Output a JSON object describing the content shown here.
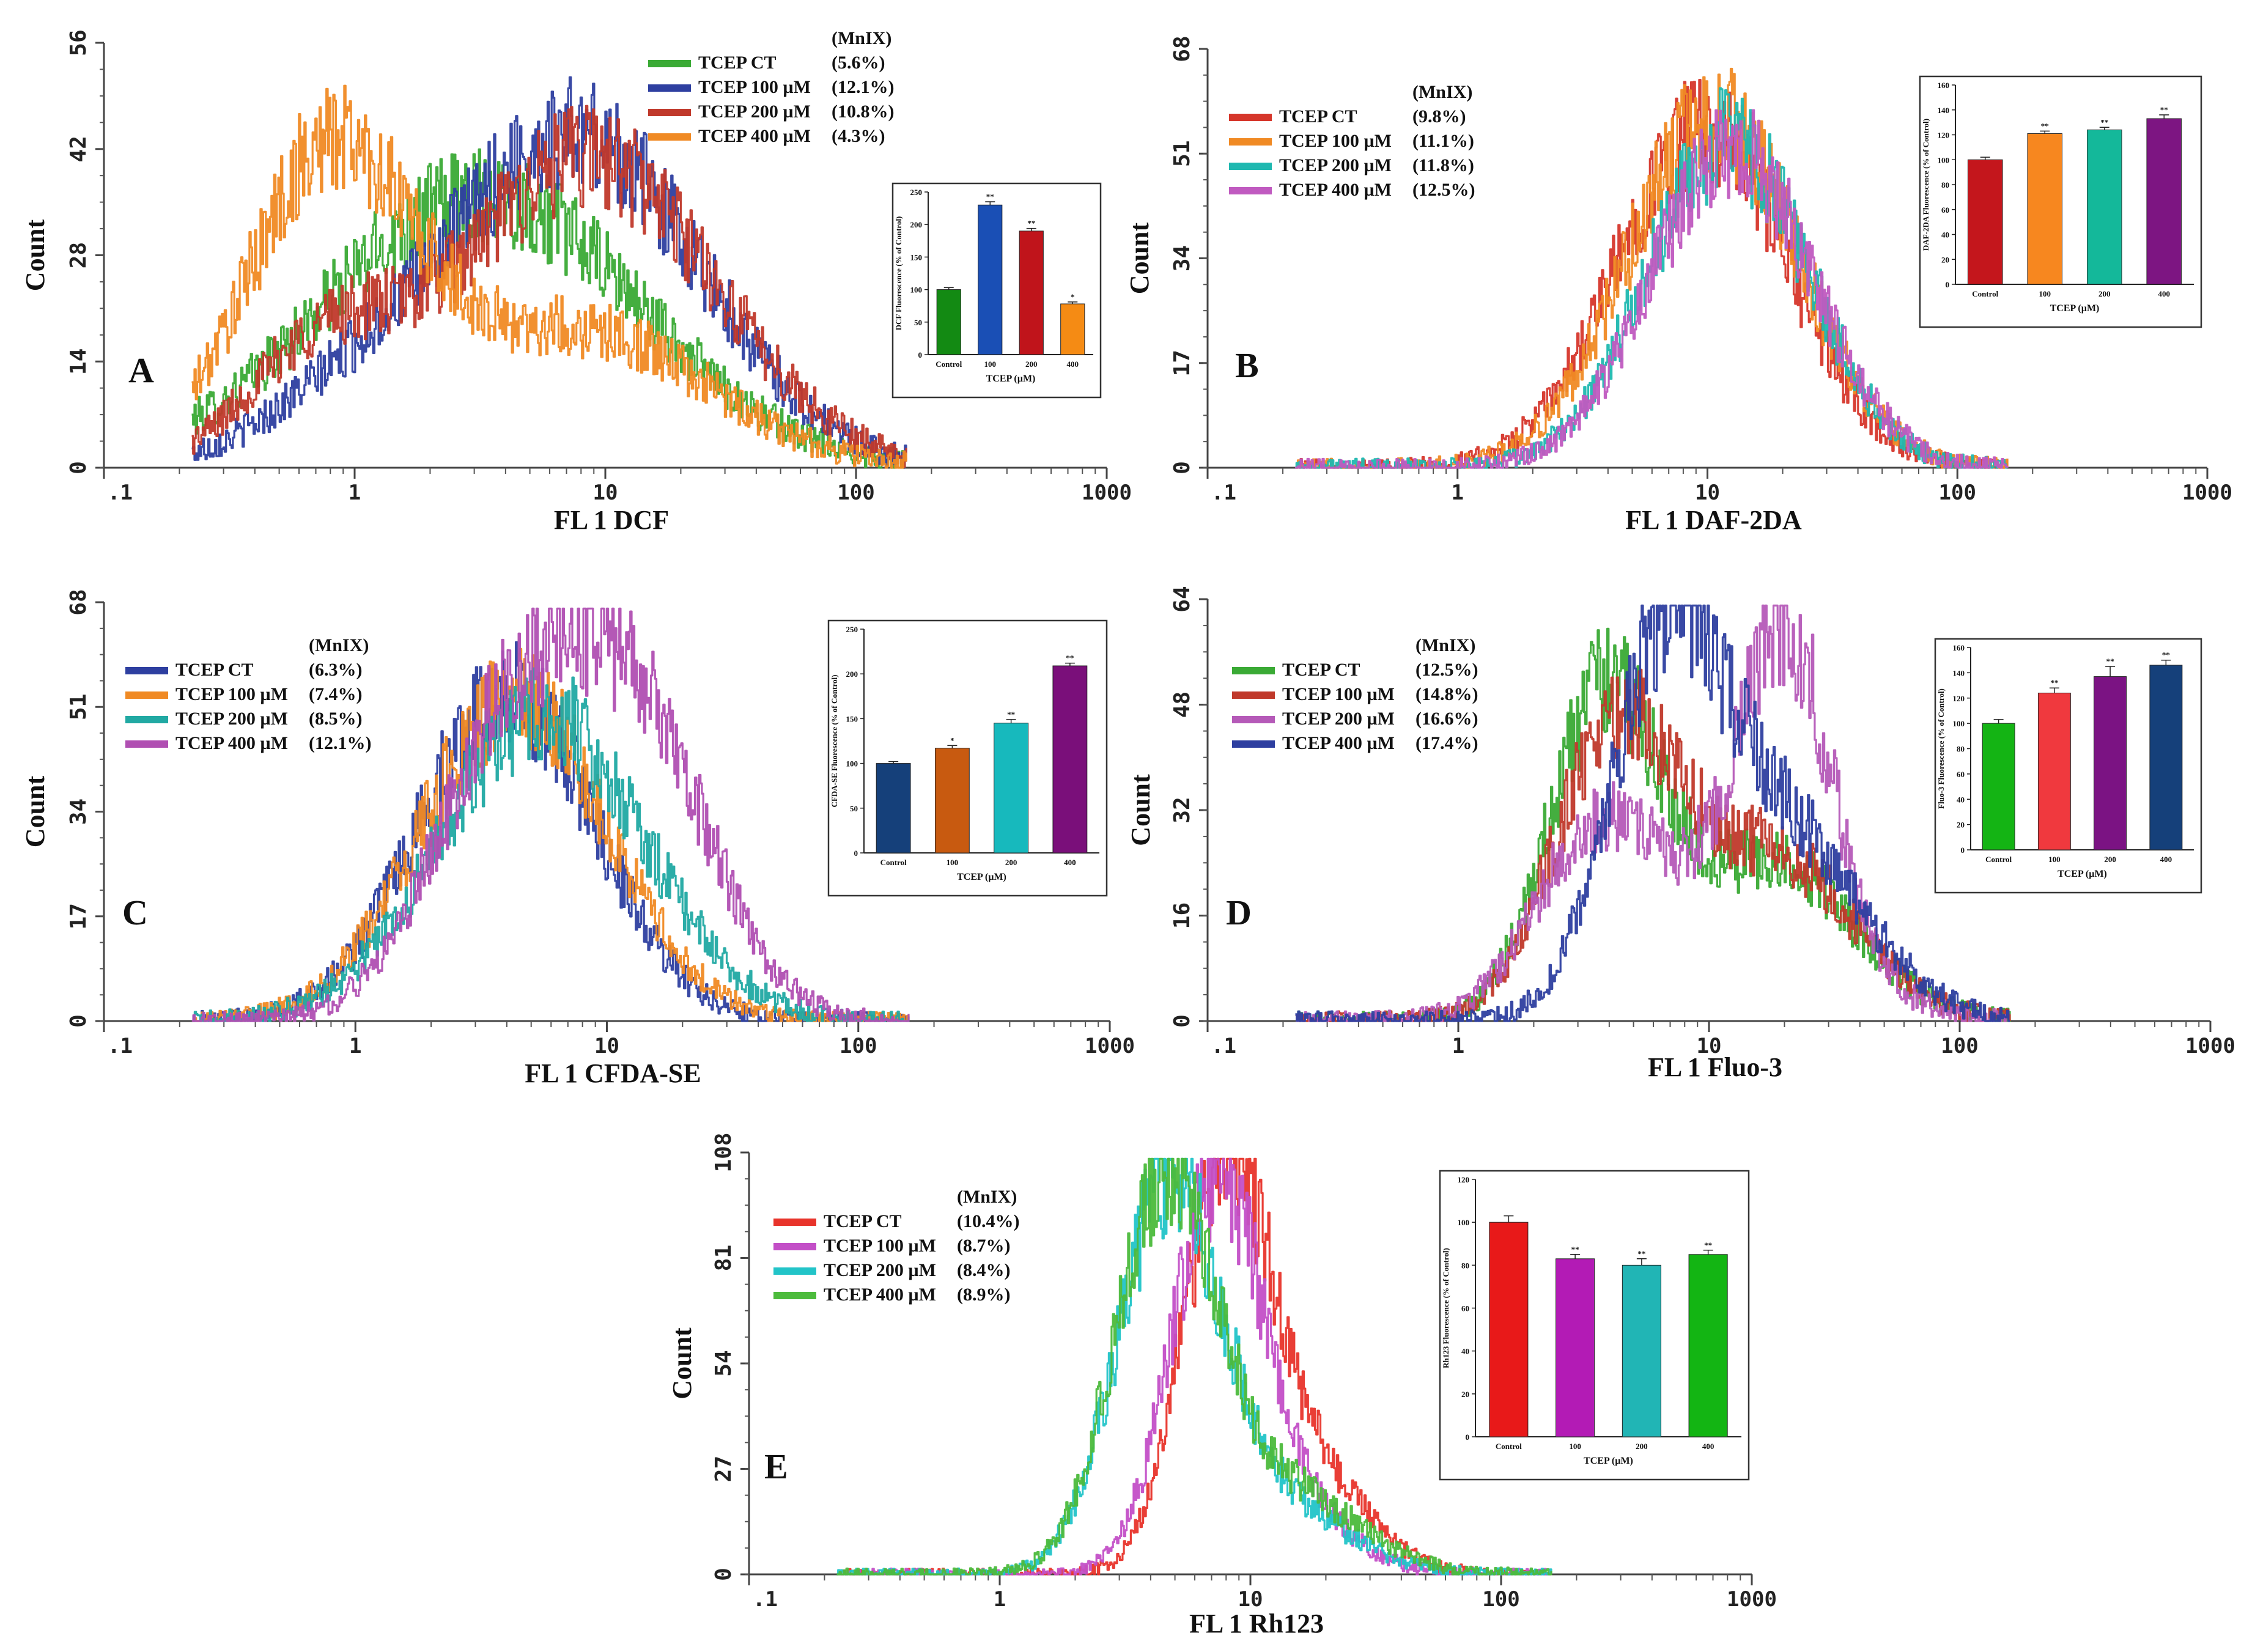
{
  "chart_data": [
    {
      "type": "line",
      "panel": "A",
      "title": "",
      "xlabel": "FL 1 DCF",
      "ylabel": "Count",
      "xscale": "log",
      "xlim": [
        0.1,
        1000
      ],
      "ylim": [
        0,
        56
      ],
      "x_tick_labels": [
        ".1",
        "1",
        "10",
        "100",
        "1000"
      ],
      "y_tick_labels": [
        "0",
        "14",
        "28",
        "42",
        "56"
      ],
      "legend_header": "(MnIX)",
      "series": [
        {
          "name": "TCEP CT",
          "mnix": "(5.6%)",
          "color": "#3aaa35",
          "peaks": [
            {
              "x": 3.2,
              "y": 36,
              "w": 0.62
            }
          ]
        },
        {
          "name": "TCEP 100 µM",
          "mnix": "(12.1%)",
          "color": "#2e3fa0",
          "peaks": [
            {
              "x": 7.5,
              "y": 44,
              "w": 0.5
            },
            {
              "x": 0.9,
              "y": 7,
              "w": 0.35
            }
          ]
        },
        {
          "name": "TCEP 200 µM",
          "mnix": "(10.8%)",
          "color": "#c0392b",
          "peaks": [
            {
              "x": 8.5,
              "y": 41,
              "w": 0.5
            },
            {
              "x": 0.75,
              "y": 15,
              "w": 0.3
            }
          ]
        },
        {
          "name": "TCEP 400 µM",
          "mnix": "(4.3%)",
          "color": "#f08a24",
          "peaks": [
            {
              "x": 0.8,
              "y": 41,
              "w": 0.33
            },
            {
              "x": 8,
              "y": 18,
              "w": 0.5
            }
          ]
        }
      ],
      "inset": {
        "ylabel": "DCF Fluorescence (% of Control)",
        "xlabel": "TCEP (µM)",
        "categories": [
          "Control",
          "100",
          "200",
          "400"
        ],
        "values": [
          100,
          230,
          190,
          78
        ],
        "errors": [
          3,
          5,
          4,
          3
        ],
        "significance": [
          "",
          "**",
          "**",
          "*"
        ],
        "ylim": [
          0,
          250
        ],
        "y_ticks": [
          "0",
          "50",
          "100",
          "150",
          "200",
          "250"
        ],
        "colors": [
          "#138a13",
          "#1a4fb5",
          "#c0141b",
          "#f58b14"
        ]
      }
    },
    {
      "type": "line",
      "panel": "B",
      "xlabel": "FL 1 DAF-2DA",
      "ylabel": "Count",
      "xscale": "log",
      "xlim": [
        0.1,
        1000
      ],
      "ylim": [
        0,
        68
      ],
      "x_tick_labels": [
        ".1",
        "1",
        "10",
        "100",
        "1000"
      ],
      "y_tick_labels": [
        "0",
        "17",
        "34",
        "51",
        "68"
      ],
      "legend_header": "(MnIX)",
      "series": [
        {
          "name": "TCEP CT",
          "mnix": "(9.8%)",
          "color": "#d6362b",
          "peaks": [
            {
              "x": 9.5,
              "y": 55,
              "w": 0.34
            }
          ]
        },
        {
          "name": "TCEP 100 µM",
          "mnix": "(11.1%)",
          "color": "#f08a24",
          "peaks": [
            {
              "x": 10.5,
              "y": 57,
              "w": 0.34
            }
          ]
        },
        {
          "name": "TCEP 200 µM",
          "mnix": "(11.8%)",
          "color": "#1fb8b0",
          "peaks": [
            {
              "x": 12,
              "y": 53,
              "w": 0.32
            }
          ]
        },
        {
          "name": "TCEP 400 µM",
          "mnix": "(12.5%)",
          "color": "#c05ac0",
          "peaks": [
            {
              "x": 12.5,
              "y": 52,
              "w": 0.32
            }
          ]
        }
      ],
      "inset": {
        "ylabel": "DAF-2DA Fluorescence (% of Control)",
        "xlabel": "TCEP (µM)",
        "categories": [
          "Control",
          "100",
          "200",
          "400"
        ],
        "values": [
          100,
          121,
          124,
          133
        ],
        "errors": [
          2,
          2,
          2,
          3
        ],
        "significance": [
          "",
          "**",
          "**",
          "**"
        ],
        "ylim": [
          0,
          160
        ],
        "y_ticks": [
          "0",
          "20",
          "40",
          "60",
          "80",
          "100",
          "120",
          "140",
          "160"
        ],
        "colors": [
          "#c4161c",
          "#f7871f",
          "#14b89a",
          "#7d1582"
        ]
      }
    },
    {
      "type": "line",
      "panel": "C",
      "xlabel": "FL 1 CFDA-SE",
      "ylabel": "Count",
      "xscale": "log",
      "xlim": [
        0.1,
        1000
      ],
      "ylim": [
        0,
        68
      ],
      "x_tick_labels": [
        ".1",
        "1",
        "10",
        "100",
        "1000"
      ],
      "y_tick_labels": [
        "0",
        "17",
        "34",
        "51",
        "68"
      ],
      "legend_header": "(MnIX)",
      "series": [
        {
          "name": "TCEP CT",
          "mnix": "(6.3%)",
          "color": "#2e3fa0",
          "peaks": [
            {
              "x": 4,
              "y": 53,
              "w": 0.35
            }
          ]
        },
        {
          "name": "TCEP 100 µM",
          "mnix": "(7.4%)",
          "color": "#f08a24",
          "peaks": [
            {
              "x": 4.3,
              "y": 52,
              "w": 0.37
            }
          ]
        },
        {
          "name": "TCEP 200 µM",
          "mnix": "(8.5%)",
          "color": "#21a9a3",
          "peaks": [
            {
              "x": 5.5,
              "y": 50,
              "w": 0.4
            }
          ]
        },
        {
          "name": "TCEP 400 µM",
          "mnix": "(12.1%)",
          "color": "#b04fb2",
          "peaks": [
            {
              "x": 4,
              "y": 44,
              "w": 0.3
            },
            {
              "x": 13,
              "y": 46,
              "w": 0.3
            }
          ]
        }
      ],
      "inset": {
        "ylabel": "CFDA-SE Fluorescence (% of Control)",
        "xlabel": "TCEP (µM)",
        "categories": [
          "Control",
          "100",
          "200",
          "400"
        ],
        "values": [
          100,
          117,
          145,
          209
        ],
        "errors": [
          2,
          3,
          4,
          3
        ],
        "significance": [
          "",
          "*",
          "**",
          "**"
        ],
        "ylim": [
          0,
          250
        ],
        "y_ticks": [
          "0",
          "50",
          "100",
          "150",
          "200",
          "250"
        ],
        "colors": [
          "#15407a",
          "#c85a10",
          "#17b9bd",
          "#7a0f7a"
        ]
      }
    },
    {
      "type": "line",
      "panel": "D",
      "xlabel": "FL 1 Fluo-3",
      "ylabel": "Count",
      "xscale": "log",
      "xlim": [
        0.1,
        1000
      ],
      "ylim": [
        0,
        64
      ],
      "x_tick_labels": [
        ".1",
        "1",
        "10",
        "100",
        "1000"
      ],
      "y_tick_labels": [
        "0",
        "16",
        "32",
        "48",
        "64"
      ],
      "legend_header": "(MnIX)",
      "series": [
        {
          "name": "TCEP CT",
          "mnix": "(12.5%)",
          "color": "#3aaa35",
          "peaks": [
            {
              "x": 3.8,
              "y": 49,
              "w": 0.22
            },
            {
              "x": 18,
              "y": 24,
              "w": 0.32
            }
          ]
        },
        {
          "name": "TCEP 100 µM",
          "mnix": "(14.8%)",
          "color": "#c0392b",
          "peaks": [
            {
              "x": 4.2,
              "y": 44,
              "w": 0.24
            },
            {
              "x": 18,
              "y": 25,
              "w": 0.32
            }
          ]
        },
        {
          "name": "TCEP 200 µM",
          "mnix": "(16.6%)",
          "color": "#b55ab8",
          "peaks": [
            {
              "x": 3.6,
              "y": 28,
              "w": 0.25
            },
            {
              "x": 20,
              "y": 46,
              "w": 0.18
            },
            {
              "x": 15,
              "y": 15,
              "w": 0.35
            }
          ]
        },
        {
          "name": "TCEP 400 µM",
          "mnix": "(17.4%)",
          "color": "#2e3fa0",
          "peaks": [
            {
              "x": 6.5,
              "y": 49,
              "w": 0.22
            },
            {
              "x": 18,
              "y": 30,
              "w": 0.33
            }
          ]
        }
      ],
      "inset": {
        "ylabel": "Fluo-3 Fluorescence (% of Control)",
        "xlabel": "TCEP (µM)",
        "categories": [
          "Control",
          "100",
          "200",
          "400"
        ],
        "values": [
          100,
          124,
          137,
          146
        ],
        "errors": [
          3,
          4,
          8,
          4
        ],
        "significance": [
          "",
          "**",
          "**",
          "**"
        ],
        "ylim": [
          0,
          160
        ],
        "y_ticks": [
          "0",
          "20",
          "40",
          "60",
          "80",
          "100",
          "120",
          "140",
          "160"
        ],
        "colors": [
          "#14b414",
          "#f0393e",
          "#7b1383",
          "#15407a"
        ]
      }
    },
    {
      "type": "line",
      "panel": "E",
      "xlabel": "FL 1 Rh123",
      "ylabel": "Count",
      "xscale": "log",
      "xlim": [
        0.1,
        1000
      ],
      "ylim": [
        0,
        108
      ],
      "x_tick_labels": [
        ".1",
        "1",
        "10",
        "100",
        "1000"
      ],
      "y_tick_labels": [
        "0",
        "27",
        "54",
        "81",
        "108"
      ],
      "legend_header": "(MnIX)",
      "series": [
        {
          "name": "TCEP CT",
          "mnix": "(10.4%)",
          "color": "#e8342b",
          "peaks": [
            {
              "x": 7.8,
              "y": 92,
              "w": 0.17
            },
            {
              "x": 15,
              "y": 30,
              "w": 0.25
            }
          ]
        },
        {
          "name": "TCEP 100 µM",
          "mnix": "(8.7%)",
          "color": "#c34fc7",
          "peaks": [
            {
              "x": 7.2,
              "y": 90,
              "w": 0.18
            },
            {
              "x": 13,
              "y": 18,
              "w": 0.25
            }
          ]
        },
        {
          "name": "TCEP 200 µM",
          "mnix": "(8.4%)",
          "color": "#22c4c8",
          "peaks": [
            {
              "x": 4.6,
              "y": 93,
              "w": 0.2
            },
            {
              "x": 11,
              "y": 20,
              "w": 0.3
            }
          ]
        },
        {
          "name": "TCEP 400 µM",
          "mnix": "(8.9%)",
          "color": "#4cbb3c",
          "peaks": [
            {
              "x": 4.5,
              "y": 96,
              "w": 0.2
            },
            {
              "x": 13,
              "y": 22,
              "w": 0.3
            }
          ]
        }
      ],
      "inset": {
        "ylabel": "Rh123 Fluorescence (% of Control)",
        "xlabel": "TCEP (µM)",
        "categories": [
          "Control",
          "100",
          "200",
          "400"
        ],
        "values": [
          100,
          83,
          80,
          85
        ],
        "errors": [
          3,
          2,
          3,
          2
        ],
        "significance": [
          "",
          "**",
          "**",
          "**"
        ],
        "ylim": [
          0,
          120
        ],
        "y_ticks": [
          "0",
          "20",
          "40",
          "60",
          "80",
          "100",
          "120"
        ],
        "colors": [
          "#e81919",
          "#b31bb5",
          "#21b5b5",
          "#13b513"
        ]
      }
    }
  ]
}
